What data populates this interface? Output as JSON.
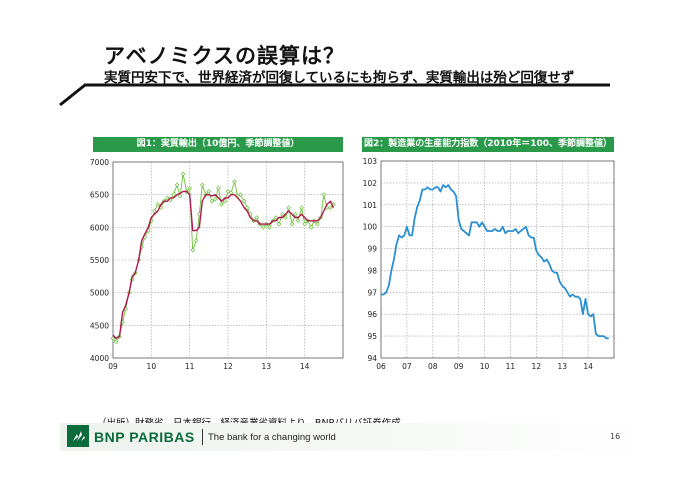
{
  "slide": {
    "title": "アベノミクスの誤算は？",
    "subtitle": "実質円安下で、世界経済が回復しているにも拘らず、実質輸出は殆ど回復せず",
    "source": "（出所）財務省、日本銀行、経済産業省資料より、BNPパリバ証券作成",
    "page_number": "16"
  },
  "footer": {
    "brand": "BNP PARIBAS",
    "tagline": "The bank for a changing world"
  },
  "colors": {
    "header_green": "#2a9a4a",
    "fig1_monthly": "#6cbf3a",
    "fig1_trend": "#b0174a",
    "fig2_line": "#2a8fd0",
    "grid": "#9aa0a6"
  },
  "chart_data": [
    {
      "type": "line",
      "title": "図1：実質輸出（10億円、季節調整値）",
      "xlabel": "",
      "ylabel": "",
      "x_ticks": [
        "09",
        "10",
        "11",
        "12",
        "13",
        "14"
      ],
      "y_ticks": [
        4000,
        4500,
        5000,
        5500,
        6000,
        6500,
        7000
      ],
      "ylim": [
        4000,
        7000
      ],
      "grid": true,
      "series": [
        {
          "role": "monthly",
          "markers": "diamond",
          "x": [
            2009.0,
            2009.08,
            2009.17,
            2009.25,
            2009.33,
            2009.42,
            2009.5,
            2009.58,
            2009.67,
            2009.75,
            2009.83,
            2009.92,
            2010.0,
            2010.08,
            2010.17,
            2010.25,
            2010.33,
            2010.42,
            2010.5,
            2010.58,
            2010.67,
            2010.75,
            2010.83,
            2010.92,
            2011.0,
            2011.08,
            2011.17,
            2011.25,
            2011.33,
            2011.42,
            2011.5,
            2011.58,
            2011.67,
            2011.75,
            2011.83,
            2011.92,
            2012.0,
            2012.08,
            2012.17,
            2012.25,
            2012.33,
            2012.42,
            2012.5,
            2012.58,
            2012.67,
            2012.75,
            2012.83,
            2012.92,
            2013.0,
            2013.08,
            2013.17,
            2013.25,
            2013.33,
            2013.42,
            2013.5,
            2013.58,
            2013.67,
            2013.75,
            2013.83,
            2013.92,
            2014.0,
            2014.08,
            2014.17,
            2014.25,
            2014.33,
            2014.42,
            2014.5,
            2014.58,
            2014.67,
            2014.75
          ],
          "values": [
            4300,
            4250,
            4330,
            4550,
            4750,
            5000,
            5200,
            5300,
            5500,
            5700,
            5850,
            5950,
            6100,
            6250,
            6350,
            6300,
            6400,
            6450,
            6420,
            6500,
            6650,
            6480,
            6820,
            6550,
            6600,
            5650,
            5800,
            6200,
            6650,
            6500,
            6550,
            6400,
            6430,
            6600,
            6350,
            6400,
            6550,
            6530,
            6700,
            6480,
            6500,
            6400,
            6300,
            6200,
            6100,
            6150,
            6050,
            6000,
            6050,
            6000,
            6100,
            6150,
            6050,
            6200,
            6150,
            6300,
            6050,
            6200,
            6100,
            6300,
            6050,
            6100,
            6000,
            6100,
            6050,
            6150,
            6500,
            6300,
            6300,
            6350
          ]
        },
        {
          "role": "trend",
          "markers": "none",
          "x": [
            2009.0,
            2009.08,
            2009.17,
            2009.25,
            2009.33,
            2009.42,
            2009.5,
            2009.58,
            2009.67,
            2009.75,
            2009.83,
            2009.92,
            2010.0,
            2010.08,
            2010.17,
            2010.25,
            2010.33,
            2010.42,
            2010.5,
            2010.58,
            2010.67,
            2010.75,
            2010.83,
            2010.92,
            2011.0,
            2011.08,
            2011.17,
            2011.25,
            2011.33,
            2011.42,
            2011.5,
            2011.58,
            2011.67,
            2011.75,
            2011.83,
            2011.92,
            2012.0,
            2012.08,
            2012.17,
            2012.25,
            2012.33,
            2012.42,
            2012.5,
            2012.58,
            2012.67,
            2012.75,
            2012.83,
            2012.92,
            2013.0,
            2013.08,
            2013.17,
            2013.25,
            2013.33,
            2013.42,
            2013.5,
            2013.58,
            2013.67,
            2013.75,
            2013.83,
            2013.92,
            2014.0,
            2014.08,
            2014.17,
            2014.25,
            2014.33,
            2014.42,
            2014.5,
            2014.58,
            2014.67,
            2014.75
          ],
          "values": [
            4350,
            4300,
            4330,
            4700,
            4800,
            5000,
            5250,
            5300,
            5500,
            5800,
            5900,
            6000,
            6150,
            6200,
            6250,
            6350,
            6400,
            6400,
            6450,
            6450,
            6500,
            6520,
            6550,
            6550,
            6500,
            5950,
            5950,
            6000,
            6400,
            6500,
            6500,
            6480,
            6500,
            6450,
            6400,
            6450,
            6450,
            6500,
            6500,
            6450,
            6400,
            6300,
            6250,
            6150,
            6100,
            6100,
            6050,
            6050,
            6050,
            6050,
            6100,
            6100,
            6150,
            6150,
            6200,
            6250,
            6200,
            6150,
            6150,
            6200,
            6150,
            6100,
            6100,
            6100,
            6100,
            6150,
            6250,
            6350,
            6400,
            6300
          ]
        }
      ]
    },
    {
      "type": "line",
      "title": "図2：製造業の生産能力指数（2010年＝100、季節調整値）",
      "xlabel": "",
      "ylabel": "",
      "x_ticks": [
        "06",
        "07",
        "08",
        "09",
        "10",
        "11",
        "12",
        "13",
        "14"
      ],
      "y_ticks": [
        94,
        95,
        96,
        97,
        98,
        99,
        100,
        101,
        102,
        103
      ],
      "ylim": [
        94,
        103
      ],
      "grid": true,
      "series": [
        {
          "x": [
            2006.0,
            2006.1,
            2006.2,
            2006.3,
            2006.4,
            2006.5,
            2006.6,
            2006.7,
            2006.8,
            2006.9,
            2007.0,
            2007.1,
            2007.2,
            2007.3,
            2007.4,
            2007.5,
            2007.6,
            2007.7,
            2007.8,
            2007.9,
            2008.0,
            2008.1,
            2008.2,
            2008.3,
            2008.4,
            2008.5,
            2008.6,
            2008.7,
            2008.8,
            2008.9,
            2009.0,
            2009.1,
            2009.2,
            2009.3,
            2009.4,
            2009.5,
            2009.6,
            2009.7,
            2009.8,
            2009.9,
            2010.0,
            2010.1,
            2010.2,
            2010.3,
            2010.4,
            2010.5,
            2010.6,
            2010.7,
            2010.8,
            2010.9,
            2011.0,
            2011.1,
            2011.2,
            2011.3,
            2011.4,
            2011.5,
            2011.6,
            2011.7,
            2011.8,
            2011.9,
            2012.0,
            2012.1,
            2012.2,
            2012.3,
            2012.4,
            2012.5,
            2012.6,
            2012.7,
            2012.8,
            2012.9,
            2013.0,
            2013.1,
            2013.2,
            2013.3,
            2013.4,
            2013.5,
            2013.6,
            2013.7,
            2013.8,
            2013.9,
            2014.0,
            2014.1,
            2014.2,
            2014.3,
            2014.4,
            2014.5,
            2014.6,
            2014.7,
            2014.8
          ],
          "values": [
            96.9,
            96.9,
            97.0,
            97.3,
            98.0,
            98.5,
            99.2,
            99.6,
            99.5,
            99.6,
            100.0,
            99.6,
            99.6,
            100.4,
            100.9,
            101.2,
            101.7,
            101.7,
            101.8,
            101.7,
            101.7,
            101.8,
            101.8,
            101.6,
            101.9,
            101.8,
            101.9,
            101.7,
            101.6,
            101.4,
            100.3,
            99.9,
            99.8,
            99.7,
            99.6,
            100.2,
            100.2,
            100.2,
            100.0,
            100.2,
            100.0,
            99.8,
            99.8,
            99.8,
            99.9,
            99.8,
            99.8,
            100.0,
            99.7,
            99.8,
            99.8,
            99.8,
            99.9,
            99.7,
            99.8,
            99.9,
            100.0,
            99.6,
            99.5,
            99.5,
            98.9,
            98.7,
            98.6,
            98.4,
            98.5,
            98.3,
            98.0,
            97.9,
            97.9,
            97.5,
            97.3,
            97.2,
            97.0,
            96.8,
            96.9,
            96.8,
            96.8,
            96.7,
            96.0,
            96.7,
            96.0,
            95.9,
            96.0,
            95.1,
            95.0,
            95.0,
            95.0,
            94.9,
            94.9
          ]
        }
      ]
    }
  ]
}
